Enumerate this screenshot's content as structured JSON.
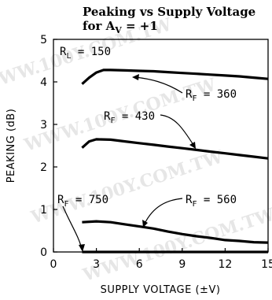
{
  "chart_data": {
    "type": "line",
    "title_line1": "Peaking vs Supply Voltage",
    "title_line2": "for A",
    "title_sub": "V",
    "title_rest": " =  +1",
    "xlabel": "SUPPLY VOLTAGE (±V)",
    "ylabel": "PEAKING (dB)",
    "xlim": [
      0,
      15
    ],
    "ylim": [
      0,
      5
    ],
    "xticks": [
      0,
      3,
      6,
      9,
      12,
      15
    ],
    "yticks": [
      0,
      1,
      2,
      3,
      4,
      5
    ],
    "grid": false,
    "note_rl": "R",
    "note_rl_sub": "L",
    "note_rl_val": " = 150",
    "series": [
      {
        "name": "R",
        "sub": "F",
        "val": " = 360",
        "x": [
          2,
          2.5,
          3,
          3.5,
          4,
          5,
          6,
          7,
          8,
          9,
          10,
          11,
          12,
          13,
          14,
          15
        ],
        "y": [
          3.95,
          4.1,
          4.22,
          4.28,
          4.28,
          4.27,
          4.26,
          4.25,
          4.23,
          4.21,
          4.19,
          4.17,
          4.15,
          4.13,
          4.1,
          4.07
        ]
      },
      {
        "name": "R",
        "sub": "F",
        "val": " = 430",
        "x": [
          2,
          2.5,
          3,
          4,
          5,
          6,
          7,
          8,
          9,
          10,
          11,
          12,
          13,
          14,
          15
        ],
        "y": [
          2.45,
          2.6,
          2.65,
          2.64,
          2.6,
          2.56,
          2.52,
          2.48,
          2.44,
          2.4,
          2.36,
          2.32,
          2.28,
          2.24,
          2.2
        ]
      },
      {
        "name": "R",
        "sub": "F",
        "val": " = 560",
        "x": [
          2,
          3,
          4,
          5,
          6,
          7,
          8,
          9,
          10,
          11,
          12,
          13,
          14,
          15
        ],
        "y": [
          0.7,
          0.72,
          0.7,
          0.65,
          0.6,
          0.55,
          0.48,
          0.42,
          0.37,
          0.33,
          0.28,
          0.26,
          0.23,
          0.22
        ]
      },
      {
        "name": "R",
        "sub": "F",
        "val": " = 750",
        "x": [
          2,
          15
        ],
        "y": [
          0,
          0
        ]
      }
    ]
  }
}
